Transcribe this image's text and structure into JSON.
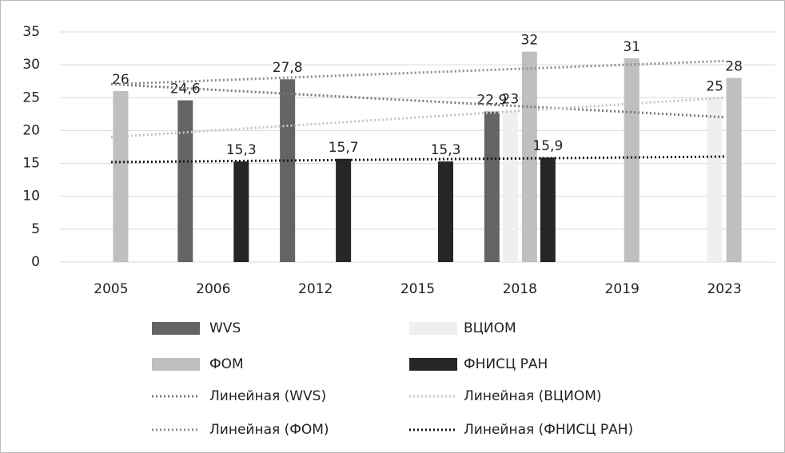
{
  "chart_data": {
    "type": "bar",
    "categories": [
      "2005",
      "2006",
      "2012",
      "2015",
      "2018",
      "2019",
      "2023"
    ],
    "series": [
      {
        "name": "WVS",
        "color": "#646464",
        "values": [
          null,
          24.6,
          27.8,
          null,
          22.9,
          null,
          null
        ],
        "value_labels": [
          null,
          "24,6",
          "27,8",
          null,
          "22,9",
          null,
          null
        ],
        "trendline": "Линейная (WVS)",
        "trend_color": "#7a7a7a"
      },
      {
        "name": "ВЦИОМ",
        "color": "#efefef",
        "values": [
          null,
          null,
          null,
          null,
          23,
          null,
          25
        ],
        "trendline": "Линейная (ВЦИОМ)",
        "trend_color": "#c4c4c4"
      },
      {
        "name": "ФОМ",
        "color": "#bfbfbf",
        "values": [
          26,
          null,
          null,
          null,
          32,
          31,
          28
        ],
        "trendline": "Линейная (ФОМ)",
        "trend_color": "#8e8e8e"
      },
      {
        "name": "ФНИСЦ РАН",
        "color": "#262626",
        "values": [
          null,
          15.3,
          15.7,
          15.3,
          15.9,
          null,
          null
        ],
        "value_labels": [
          null,
          "15,3",
          "15,7",
          "15,3",
          "15,9",
          null,
          null
        ],
        "trendline": "Линейная (ФНИСЦ РАН)",
        "trend_color": "#1a1a1a"
      }
    ],
    "ylim": [
      0,
      35
    ],
    "yticks": [
      0,
      5,
      10,
      15,
      20,
      25,
      30,
      35
    ],
    "grid": true,
    "legend": "bottom"
  }
}
